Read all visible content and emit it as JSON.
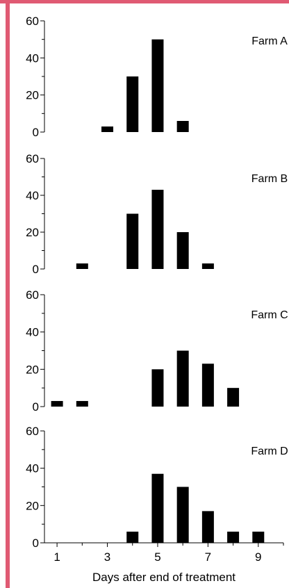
{
  "chart_data": [
    {
      "type": "bar",
      "panel_label": "Farm A",
      "x": [
        1,
        2,
        3,
        4,
        5,
        6,
        7,
        8,
        9
      ],
      "values": [
        0,
        0,
        3,
        30,
        50,
        6,
        0,
        0,
        0
      ],
      "ylim": [
        0,
        60
      ],
      "yticks": [
        "0",
        "20",
        "40",
        "60"
      ],
      "xlim": [
        0.5,
        10
      ],
      "bar_color": "#000000"
    },
    {
      "type": "bar",
      "panel_label": "Farm B",
      "x": [
        1,
        2,
        3,
        4,
        5,
        6,
        7,
        8,
        9
      ],
      "values": [
        0,
        3,
        0,
        30,
        43,
        20,
        3,
        0,
        0
      ],
      "ylim": [
        0,
        60
      ],
      "yticks": [
        "0",
        "20",
        "40",
        "60"
      ],
      "xlim": [
        0.5,
        10
      ],
      "bar_color": "#000000"
    },
    {
      "type": "bar",
      "panel_label": "Farm C",
      "x": [
        1,
        2,
        3,
        4,
        5,
        6,
        7,
        8,
        9
      ],
      "values": [
        3,
        3,
        0,
        0,
        20,
        30,
        23,
        10,
        0
      ],
      "ylim": [
        0,
        60
      ],
      "yticks": [
        "0",
        "20",
        "40",
        "60"
      ],
      "xlim": [
        0.5,
        10
      ],
      "bar_color": "#000000"
    },
    {
      "type": "bar",
      "panel_label": "Farm D",
      "x": [
        1,
        2,
        3,
        4,
        5,
        6,
        7,
        8,
        9
      ],
      "values": [
        0,
        0,
        0,
        6,
        37,
        30,
        17,
        6,
        6
      ],
      "ylim": [
        0,
        60
      ],
      "yticks": [
        "0",
        "20",
        "40",
        "60"
      ],
      "xlim": [
        0.5,
        10
      ],
      "bar_color": "#000000",
      "xtick_labels": [
        "1",
        "3",
        "5",
        "7",
        "9"
      ],
      "xtick_values": [
        1,
        3,
        5,
        7,
        9
      ],
      "xlabel": "Days after end of treatment"
    }
  ],
  "frame_color": "#e05a73"
}
